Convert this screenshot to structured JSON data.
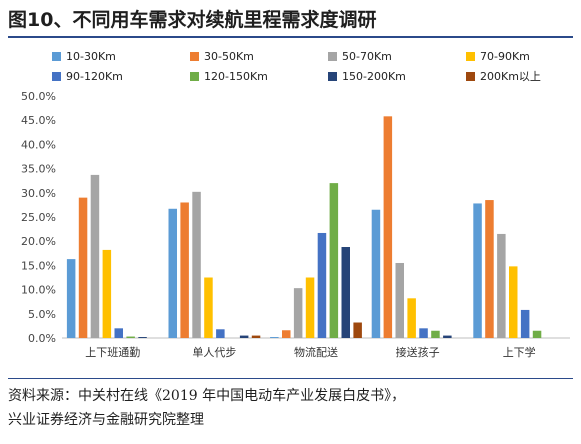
{
  "title": "图10、不同用车需求对续航里程需求度调研",
  "source": {
    "line1": "资料来源：中关村在线《2019 年中国电动车产业发展白皮书》，",
    "line2": "兴业证券经济与金融研究院整理"
  },
  "chart_data": {
    "type": "bar",
    "categories": [
      "上下班通勤",
      "单人代步",
      "物流配送",
      "接送孩子",
      "上下学"
    ],
    "series": [
      {
        "name": "10-30Km",
        "color": "#5b9bd5",
        "values": [
          16.3,
          26.7,
          0.2,
          26.5,
          27.8
        ]
      },
      {
        "name": "30-50Km",
        "color": "#ed7d31",
        "values": [
          29.0,
          28.0,
          1.6,
          45.8,
          28.5
        ]
      },
      {
        "name": "50-70Km",
        "color": "#a5a5a5",
        "values": [
          33.7,
          30.2,
          10.3,
          15.5,
          21.5
        ]
      },
      {
        "name": "70-90Km",
        "color": "#ffc000",
        "values": [
          18.2,
          12.5,
          12.5,
          8.2,
          14.8
        ]
      },
      {
        "name": "90-120Km",
        "color": "#4472c4",
        "values": [
          2.0,
          1.8,
          21.7,
          2.0,
          5.8
        ]
      },
      {
        "name": "120-150Km",
        "color": "#70ad47",
        "values": [
          0.3,
          0.0,
          32.0,
          1.5,
          1.5
        ]
      },
      {
        "name": "150-200Km",
        "color": "#264478",
        "values": [
          0.2,
          0.5,
          18.8,
          0.5,
          0.0
        ]
      },
      {
        "name": "200Km以上",
        "color": "#9e480e",
        "values": [
          0.0,
          0.5,
          3.2,
          0.0,
          0.0
        ]
      }
    ],
    "yticks": [
      "0.0%",
      "5.0%",
      "10.0%",
      "15.0%",
      "20.0%",
      "25.0%",
      "30.0%",
      "35.0%",
      "40.0%",
      "45.0%",
      "50.0%"
    ],
    "ylim": [
      0,
      50
    ],
    "grid": false,
    "legend_position": "top"
  }
}
